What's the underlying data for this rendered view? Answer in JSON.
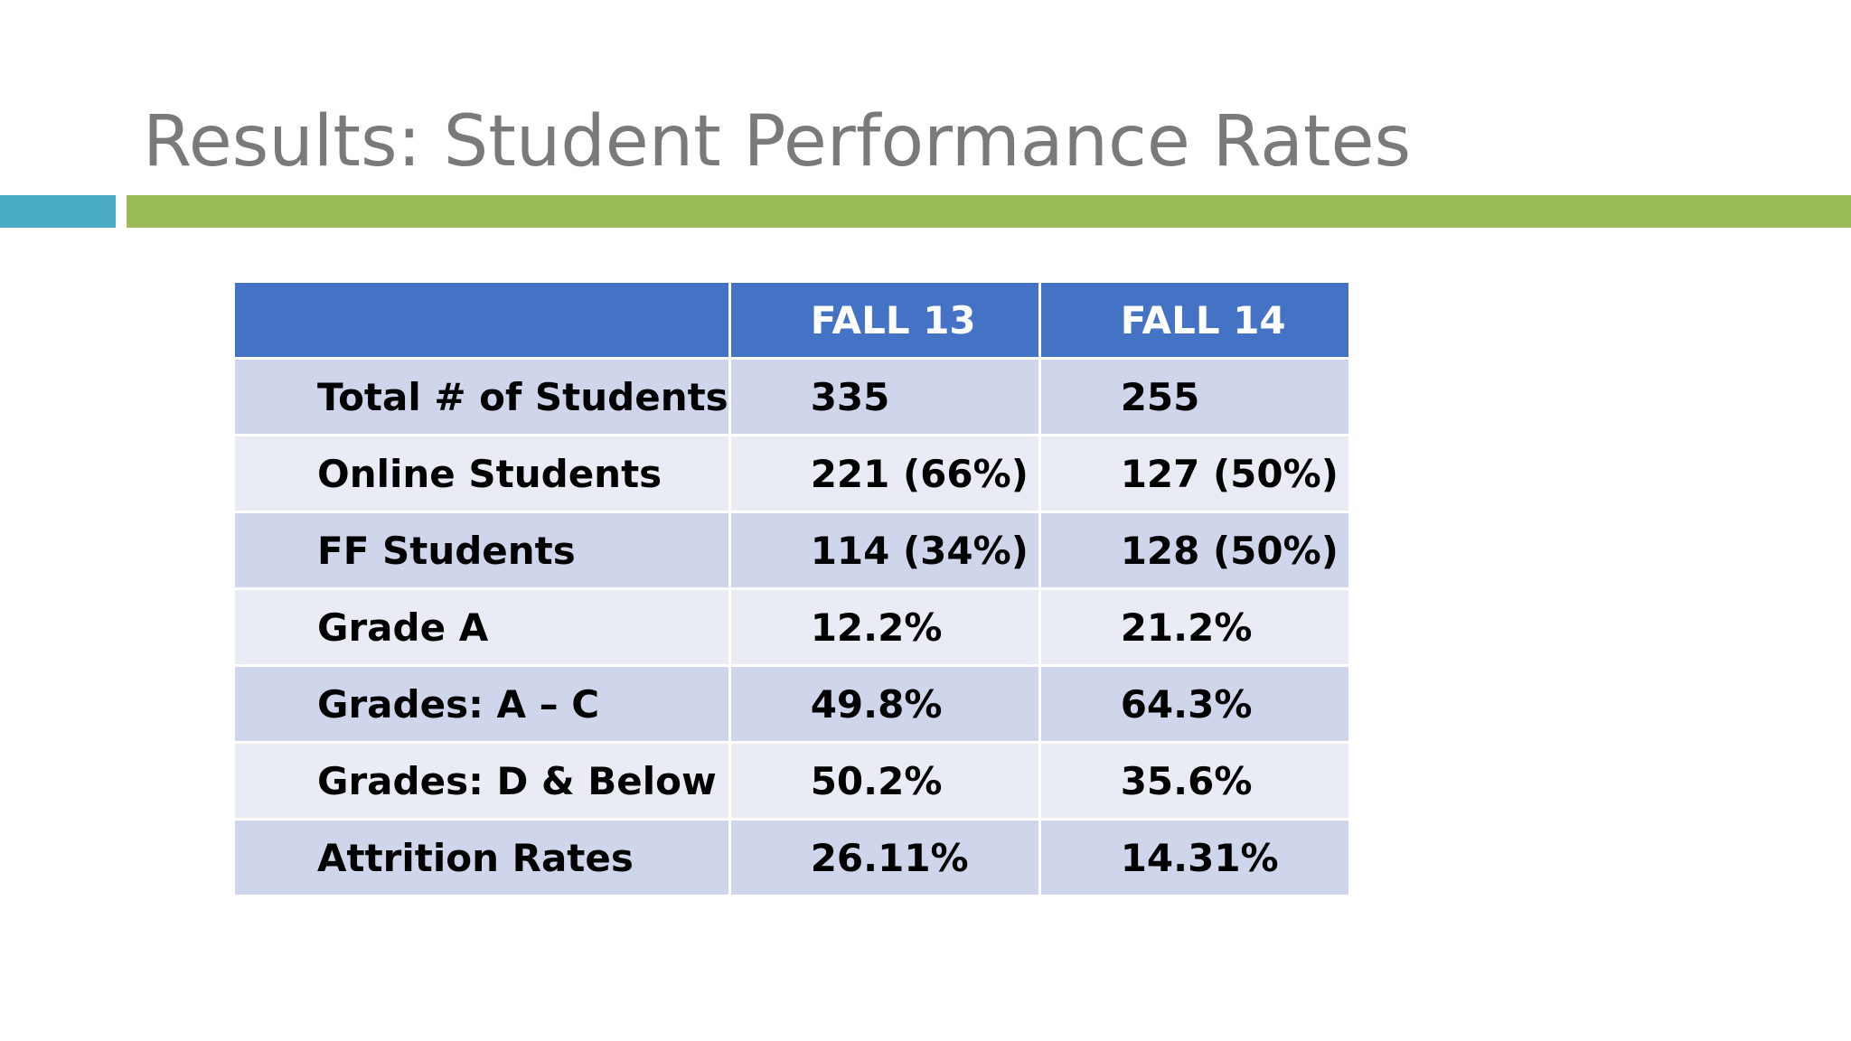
{
  "slide": {
    "title": "Results: Student Performance Rates",
    "accent_colors": {
      "title_text": "#7a7a7a",
      "bar_blue": "#4bacc6",
      "bar_green": "#9bbb59",
      "header_fill": "#4472c4",
      "row_fill_odd": "#cfd5ea",
      "row_fill_even": "#e9ebf5"
    }
  },
  "table": {
    "headers": [
      "",
      "FALL 13",
      "FALL 14"
    ],
    "rows": [
      {
        "label": "Total # of Students",
        "fall13": "335",
        "fall14": "255"
      },
      {
        "label": "Online Students",
        "fall13": "221  (66%)",
        "fall14": "127  (50%)"
      },
      {
        "label": "FF Students",
        "fall13": "114  (34%)",
        "fall14": "128  (50%)"
      },
      {
        "label": "Grade A",
        "fall13": "12.2%",
        "fall14": "21.2%"
      },
      {
        "label": "Grades: A – C",
        "fall13": "49.8%",
        "fall14": "64.3%"
      },
      {
        "label": "Grades: D & Below",
        "fall13": "50.2%",
        "fall14": "35.6%"
      },
      {
        "label": "Attrition Rates",
        "fall13": "26.11%",
        "fall14": "14.31%"
      }
    ]
  }
}
